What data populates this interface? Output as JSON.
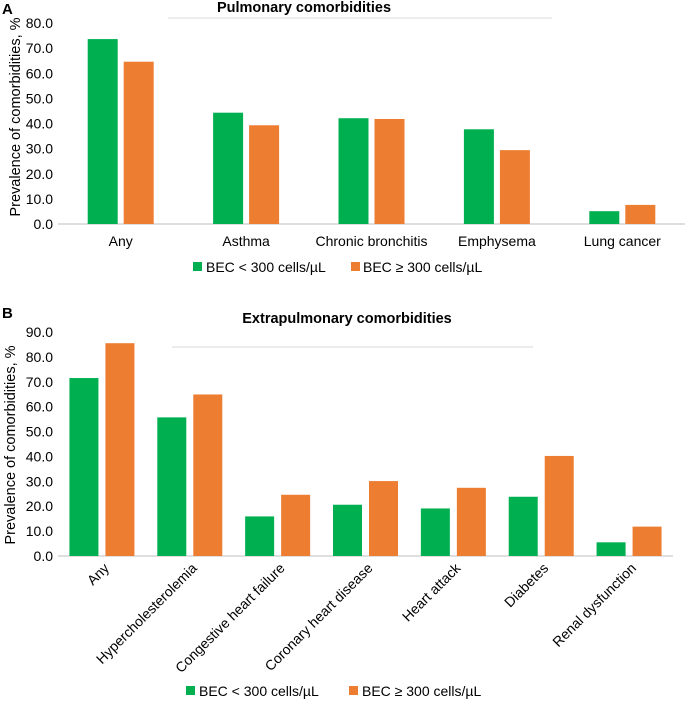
{
  "colors": {
    "series1": "#00b050",
    "series2": "#ed7d31",
    "axis": "#bfbfbf"
  },
  "chart_data": [
    {
      "type": "bar",
      "panel": "A",
      "title": "Pulmonary comorbidities",
      "ylabel": "Prevalence of comorbidities, %",
      "xlabel": "",
      "ylim": [
        0,
        80
      ],
      "yticks": [
        "0.0",
        "10.0",
        "20.0",
        "30.0",
        "40.0",
        "50.0",
        "60.0",
        "70.0",
        "80.0"
      ],
      "categories": [
        "Any",
        "Asthma",
        "Chronic bronchitis",
        "Emphysema",
        "Lung cancer"
      ],
      "series": [
        {
          "name": "BEC < 300 cells/µL",
          "values": [
            73.6,
            44.3,
            42.1,
            37.7,
            5.1
          ]
        },
        {
          "name": "BEC ≥ 300 cells/µL",
          "values": [
            64.6,
            39.3,
            41.8,
            29.4,
            7.6
          ]
        }
      ],
      "legend": "bottom"
    },
    {
      "type": "bar",
      "panel": "B",
      "title": "Extrapulmonary comorbidities",
      "ylabel": "Prevalence of comorbidities, %",
      "xlabel": "",
      "ylim": [
        0,
        90
      ],
      "yticks": [
        "0.0",
        "10.0",
        "20.0",
        "30.0",
        "40.0",
        "50.0",
        "60.0",
        "70.0",
        "80.0",
        "90.0"
      ],
      "categories": [
        "Any",
        "Hypercholesterolemia",
        "Congestive heart failure",
        "Coronary heart disease",
        "Heart attack",
        "Diabetes",
        "Renal dysfunction"
      ],
      "series": [
        {
          "name": "BEC < 300 cells/µL",
          "values": [
            71.5,
            55.7,
            15.9,
            20.6,
            19.1,
            23.8,
            5.5
          ]
        },
        {
          "name": "BEC ≥ 300 cells/µL",
          "values": [
            85.5,
            64.9,
            24.6,
            30.1,
            27.4,
            40.2,
            11.8
          ]
        }
      ],
      "legend": "bottom"
    }
  ]
}
